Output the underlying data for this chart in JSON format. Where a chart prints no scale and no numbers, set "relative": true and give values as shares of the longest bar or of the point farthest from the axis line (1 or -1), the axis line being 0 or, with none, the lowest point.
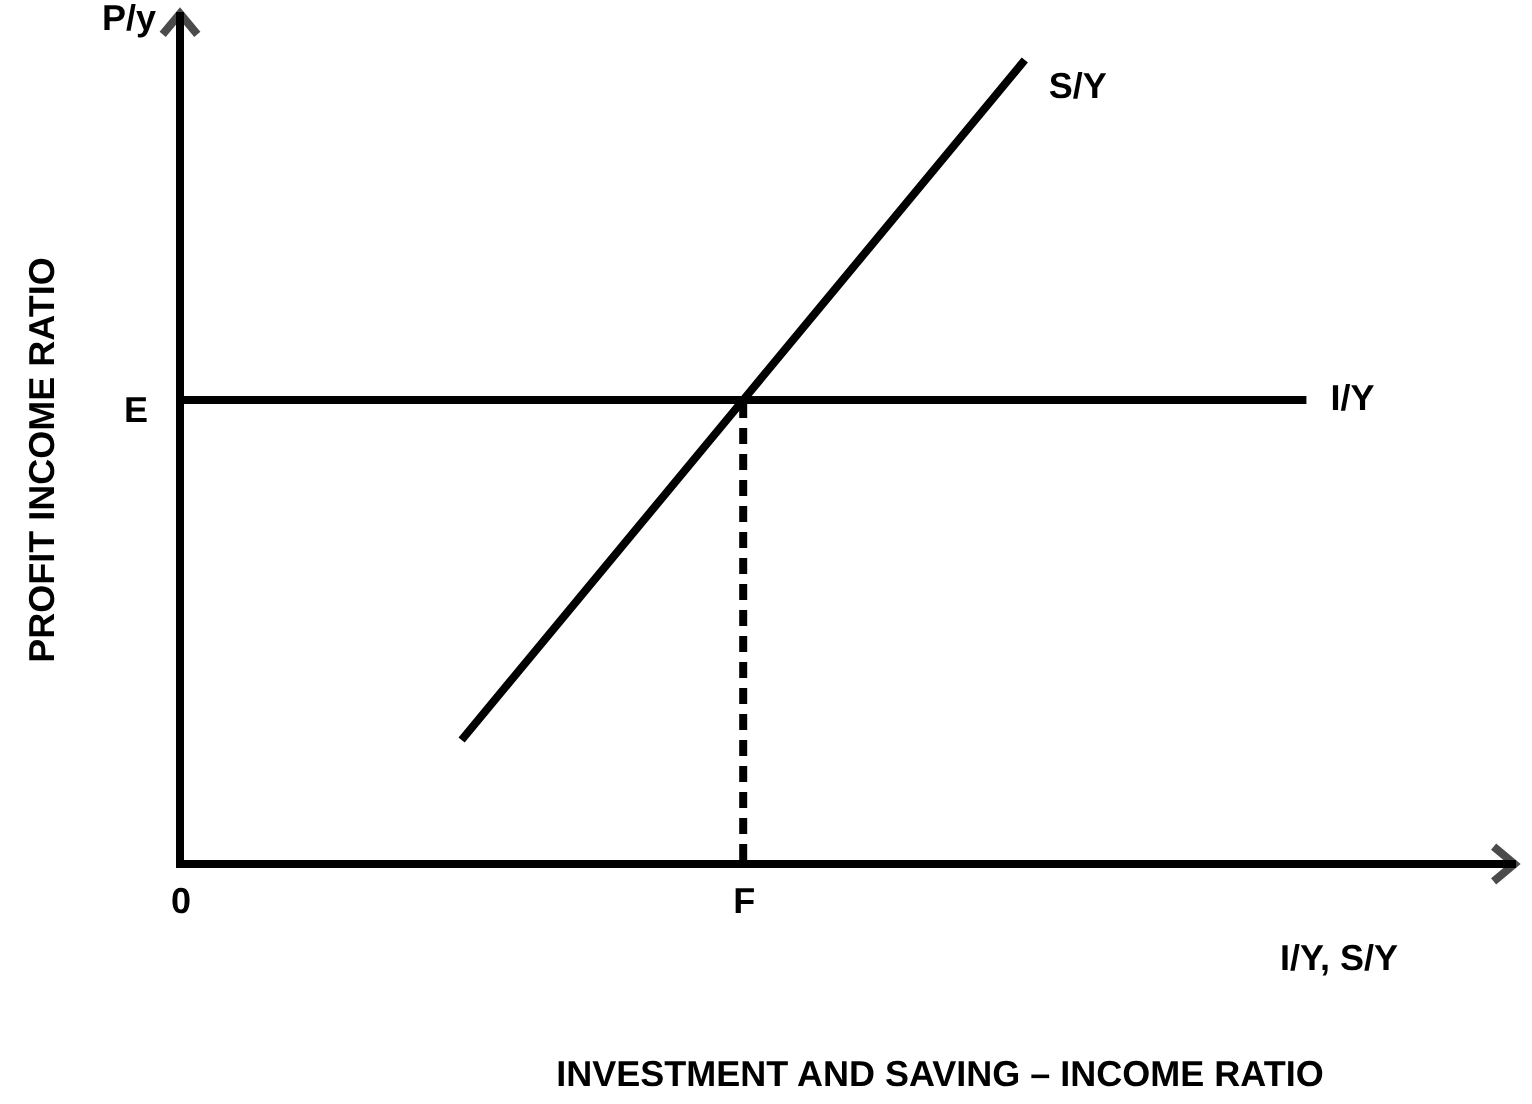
{
  "chart_data": {
    "type": "line",
    "relative": true,
    "xlabel": "INVESTMENT AND SAVING – INCOME RATIO",
    "ylabel": "PROFIT INCOME RATIO",
    "categories": [
      "0",
      null,
      "F",
      null,
      null
    ],
    "series": [
      {
        "name": "S/Y",
        "color": "#000000",
        "values": [
          null,
          0.15,
          0.575,
          1,
          null
        ]
      },
      {
        "name": "I/Y",
        "color": "#000000",
        "values": [
          0.575,
          0.575,
          0.575,
          0.575,
          0.575
        ]
      },
      {
        "color": "#000000",
        "line_style": "dashed",
        "x": [
          "F",
          "F"
        ],
        "values": [
          0,
          0.575
        ]
      }
    ],
    "annotations": [
      "P/y",
      "I/Y, S/Y",
      "E"
    ]
  }
}
